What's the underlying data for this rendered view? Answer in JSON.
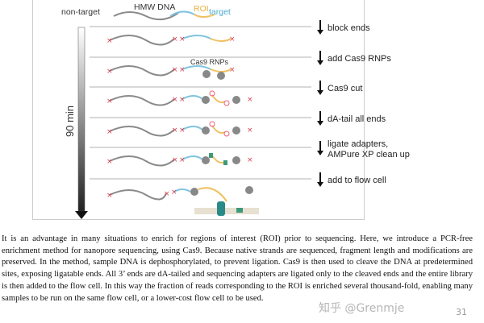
{
  "figure": {
    "labels": {
      "non_target": "non-target",
      "hmw_dna": "HMW DNA",
      "roi": "ROI",
      "target": "target",
      "cas9_rnps": "Cas9 RNPs",
      "time": "90 min"
    },
    "steps": [
      "block ends",
      "add Cas9 RNPs",
      "Cas9 cut",
      "dA-tail all ends",
      "ligate adapters,",
      "AMPure XP clean up",
      "add to flow cell"
    ],
    "colors": {
      "non_target": "#8a8a8a",
      "target": "#7fc4e0",
      "roi": "#f0c060",
      "block": "#d94050",
      "phosphate": "#e8607a"
    }
  },
  "paragraph": "It is an advantage in many situations to enrich for regions of interest (ROI) prior to sequencing. Here, we introduce a PCR-free enrichment method for nanopore sequencing, using Cas9. Because native strands are sequenced, fragment length and modifications are preserved. In the method, sample DNA is dephosphorylated, to prevent ligation. Cas9 is then used to cleave the DNA at predetermined sites, exposing ligatable ends. All 3’ ends are dA-tailed and sequencing adapters are ligated only to the cleaved ends and the entire library is then added to the flow cell. In this way the fraction of reads corresponding to the ROI is enriched several thousand-fold, enabling many samples to be run on the same flow cell, or a lower-cost flow cell to be used.",
  "watermark": "知乎 @Grenmje",
  "page_number": "31"
}
